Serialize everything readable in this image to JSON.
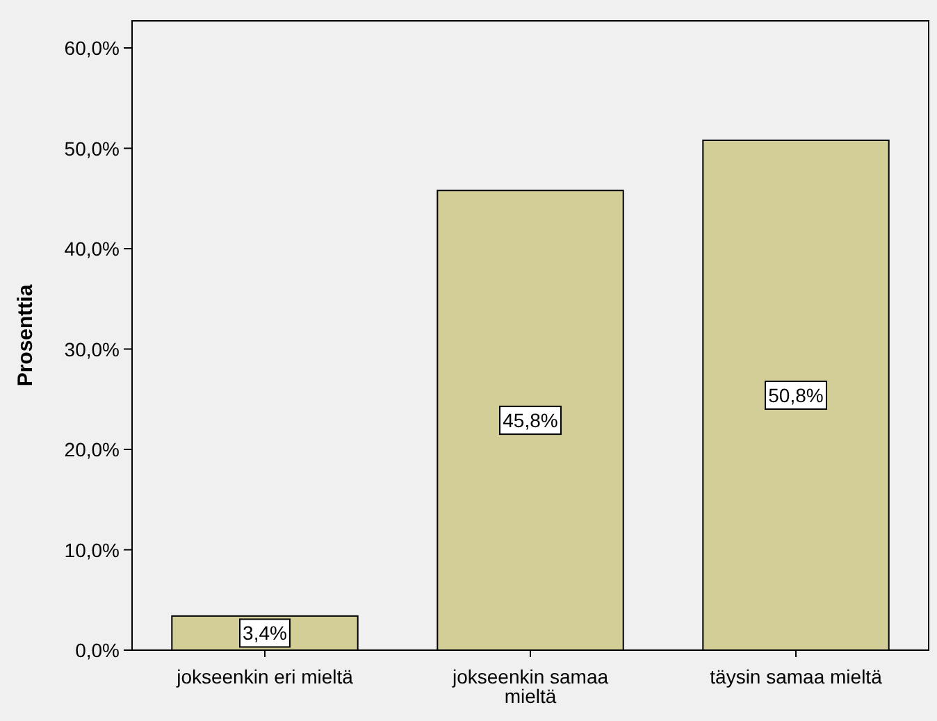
{
  "chart_data": {
    "type": "bar",
    "ylabel": "Prosenttia",
    "categories": [
      "jokseenkin eri mieltä",
      "jokseenkin samaa mieltä",
      "täysin samaa mieltä"
    ],
    "values": [
      3.4,
      45.8,
      50.8
    ],
    "color": "#d3ce98",
    "value_labels": [
      "3,4%",
      "45,8%",
      "50,8%"
    ],
    "ylim": [
      0,
      62.7
    ],
    "yticks": [
      {
        "value": 0,
        "label": "0,0%"
      },
      {
        "value": 10,
        "label": "10,0%"
      },
      {
        "value": 20,
        "label": "20,0%"
      },
      {
        "value": 30,
        "label": "30,0%"
      },
      {
        "value": 40,
        "label": "40,0%"
      },
      {
        "value": 50,
        "label": "50,0%"
      },
      {
        "value": 60,
        "label": "60,0%"
      }
    ],
    "grid": false
  }
}
